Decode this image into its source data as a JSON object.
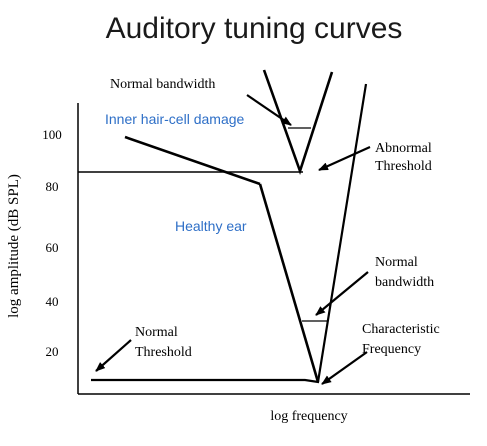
{
  "title": "Auditory tuning curves",
  "axes": {
    "ylabel": "log amplitude (dB SPL)",
    "xlabel": "log frequency",
    "yticks": [
      "100",
      "80",
      "60",
      "40",
      "20"
    ]
  },
  "labels": {
    "inner_hair_cell_damage": "Inner hair-cell damage",
    "healthy_ear": "Healthy ear",
    "normal_bandwidth_top": "Normal bandwidth",
    "abnormal_threshold_line1": "Abnormal",
    "abnormal_threshold_line2": "Threshold",
    "normal_bandwidth_right_line1": "Normal",
    "normal_bandwidth_right_line2": "bandwidth",
    "characteristic_frequency_line1": "Characteristic",
    "characteristic_frequency_line2": "Frequency",
    "normal_threshold_line1": "Normal",
    "normal_threshold_line2": "Threshold"
  },
  "colors": {
    "ink": "#000000",
    "accent_blue": "#2e6fc7"
  }
}
